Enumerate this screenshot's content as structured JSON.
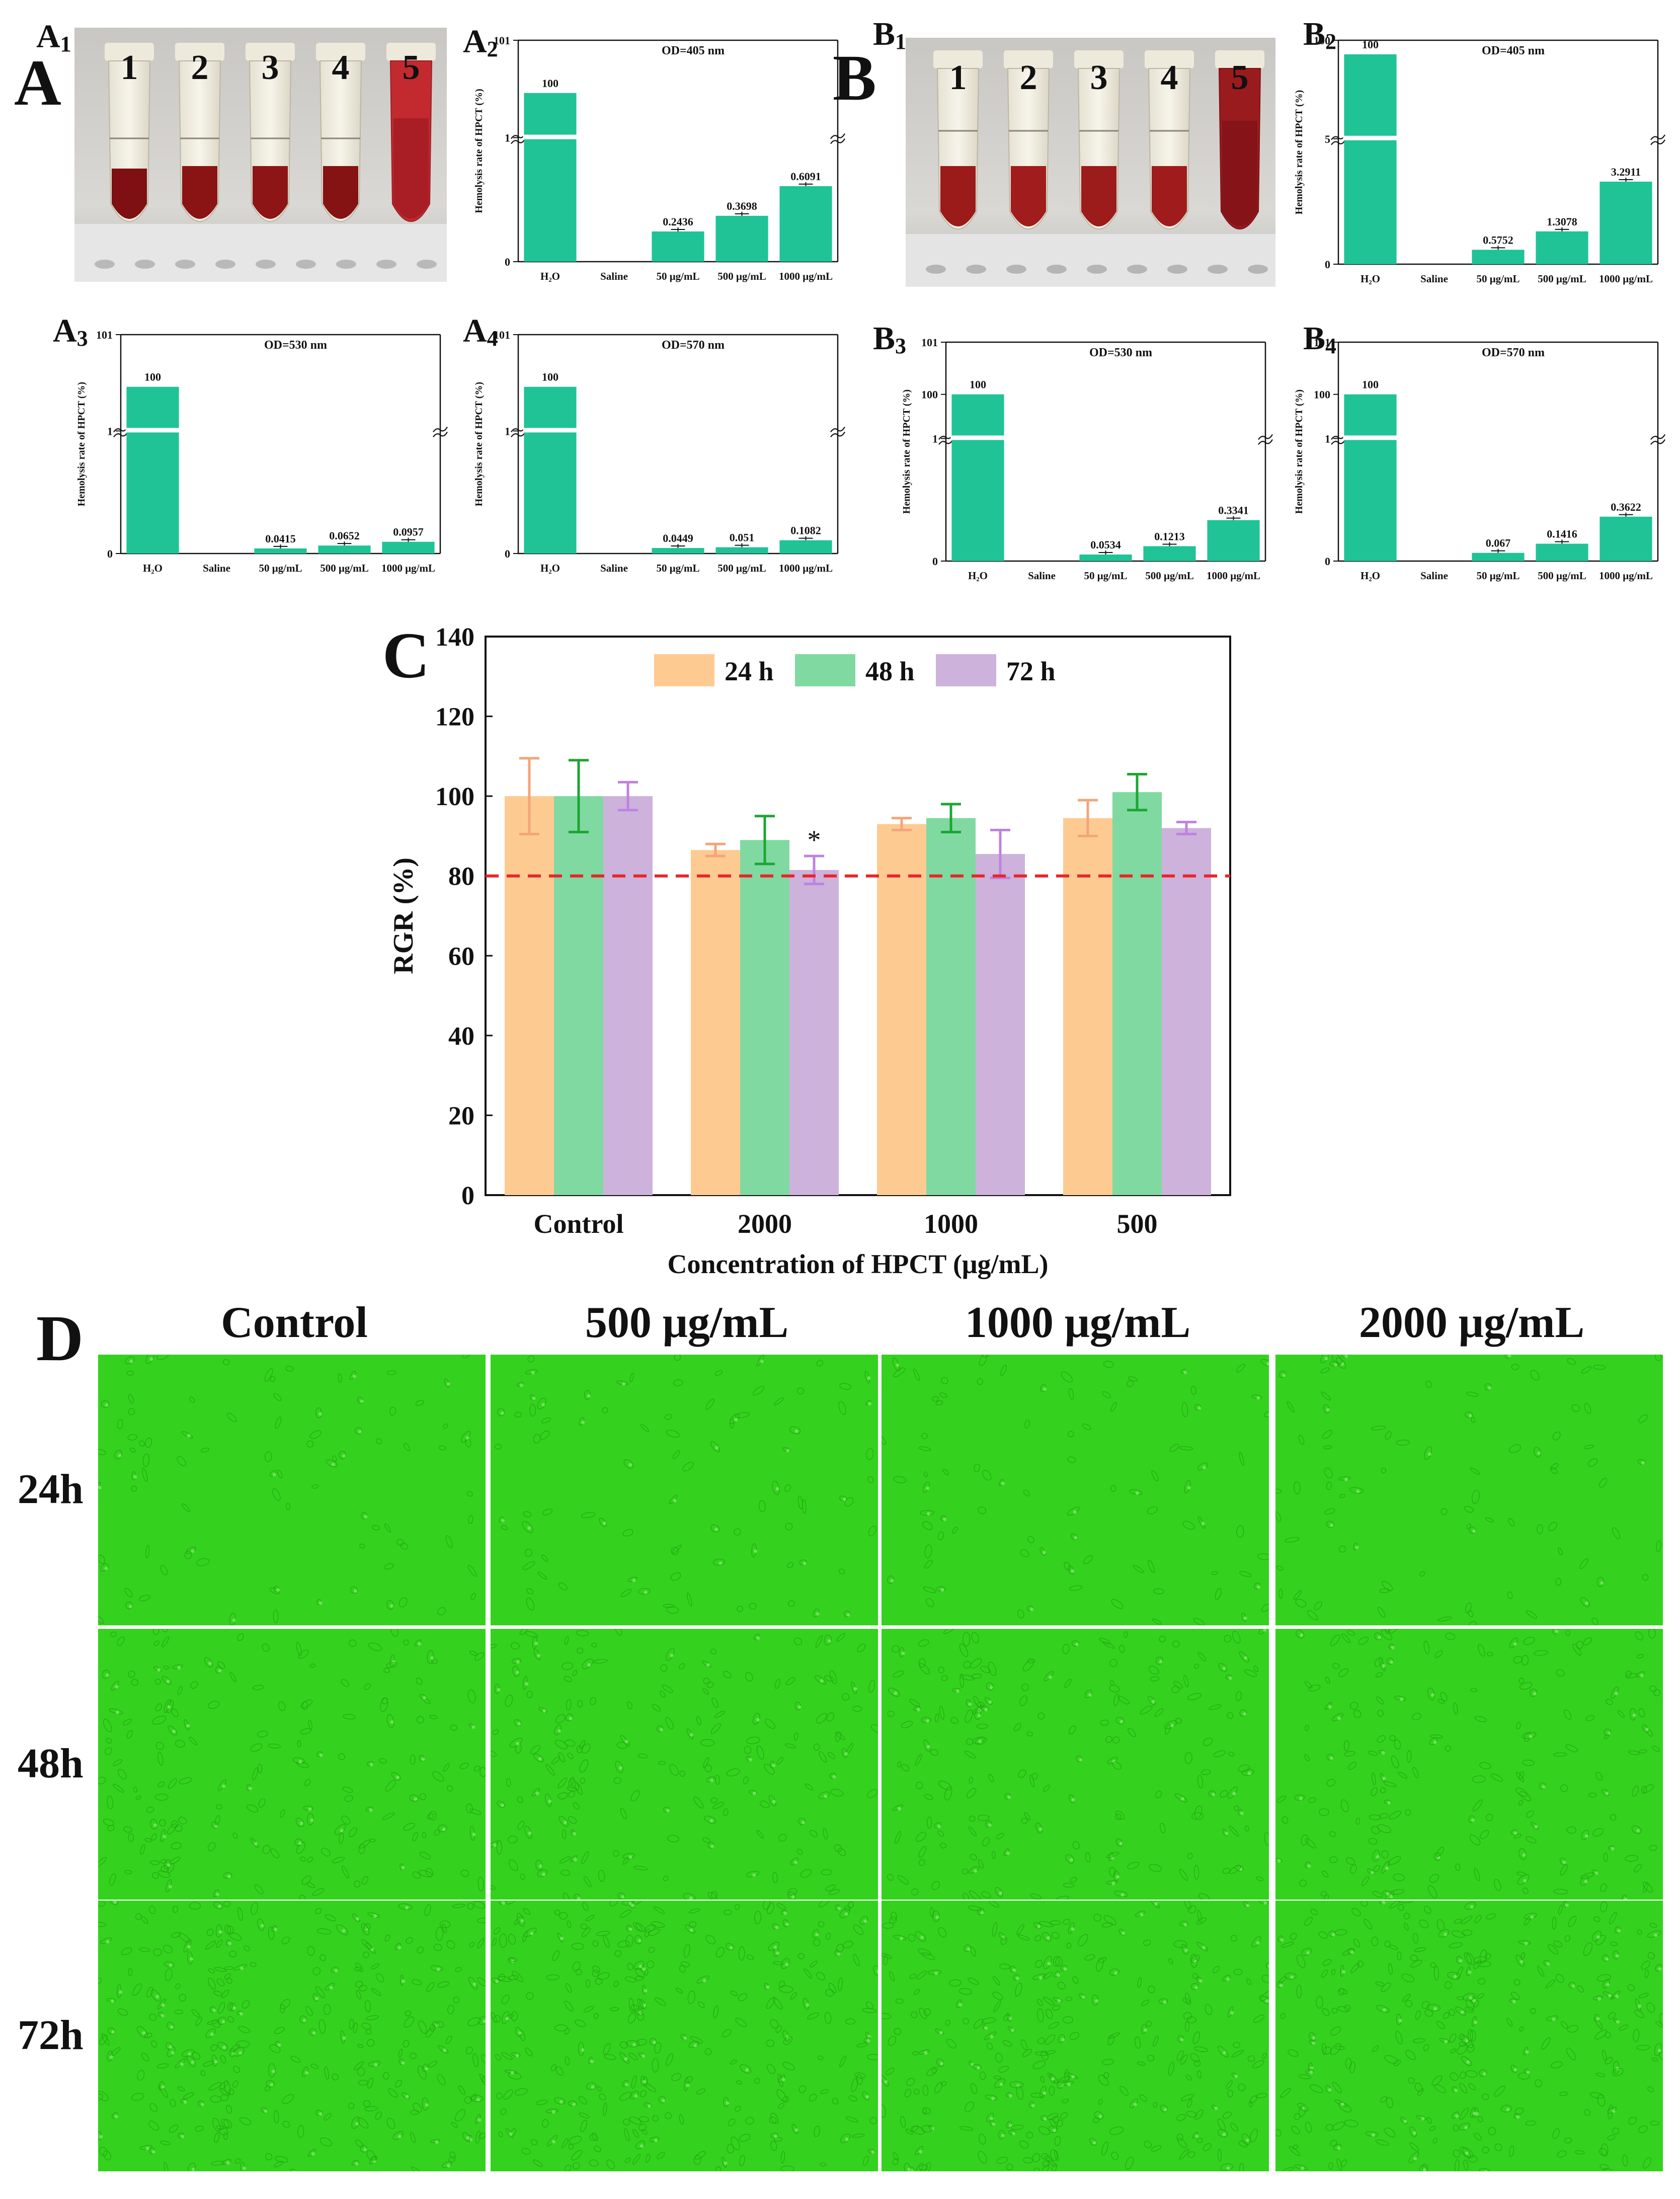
{
  "panels": {
    "A": "A",
    "B": "B",
    "C": "C",
    "D": "D"
  },
  "sub_labels": {
    "A1": "A",
    "A1_sub": "1",
    "A2": "A",
    "A2_sub": "2",
    "A3": "A",
    "A3_sub": "3",
    "A4": "A",
    "A4_sub": "4",
    "B1": "B",
    "B1_sub": "1",
    "B2": "B",
    "B2_sub": "2",
    "B3": "B",
    "B3_sub": "3",
    "B4": "B",
    "B4_sub": "4"
  },
  "tubes": [
    "1",
    "2",
    "3",
    "4",
    "5"
  ],
  "colors": {
    "hemolysis_bar": "#1fc396",
    "series_24h": "#fdcb92",
    "series_48h": "#80d9a1",
    "series_72h": "#cdb2db",
    "err_24h": "#f3a579",
    "err_48h": "#1ba632",
    "err_72h": "#be82e2",
    "threshold": "#e8262a",
    "micro_green": "#34d21e"
  },
  "chart_data": [
    {
      "id": "A2",
      "type": "bar",
      "title": "OD=405 nm",
      "ylabel": "Hemolysis rate of HPCT (%)",
      "categories": [
        "H₂O",
        "Saline",
        "50 μg/mL",
        "500 μg/mL",
        "1000 μg/mL"
      ],
      "values": [
        100,
        0,
        0.2436,
        0.3698,
        0.6091
      ],
      "value_labels": [
        "100",
        "",
        "0.2436",
        "0.3698",
        "0.6091"
      ],
      "broken_axis": {
        "lower": [
          0,
          1
        ],
        "upper": [
          99,
          101
        ]
      },
      "yticks": [
        "0",
        "1",
        "101"
      ]
    },
    {
      "id": "A3",
      "type": "bar",
      "title": "OD=530 nm",
      "ylabel": "Hemolysis rate of HPCT (%)",
      "categories": [
        "H₂O",
        "Saline",
        "50 μg/mL",
        "500 μg/mL",
        "1000 μg/mL"
      ],
      "values": [
        100,
        0,
        0.0415,
        0.0652,
        0.0957
      ],
      "value_labels": [
        "100",
        "",
        "0.0415",
        "0.0652",
        "0.0957"
      ],
      "broken_axis": {
        "lower": [
          0,
          1
        ],
        "upper": [
          99,
          101
        ]
      },
      "yticks": [
        "0",
        "1",
        "101"
      ]
    },
    {
      "id": "A4",
      "type": "bar",
      "title": "OD=570 nm",
      "ylabel": "Hemolysis rate of HPCT (%)",
      "categories": [
        "H₂O",
        "Saline",
        "50 μg/mL",
        "500 μg/mL",
        "1000 μg/mL"
      ],
      "values": [
        100,
        0,
        0.0449,
        0.051,
        0.1082
      ],
      "value_labels": [
        "100",
        "",
        "0.0449",
        "0.051",
        "0.1082"
      ],
      "broken_axis": {
        "lower": [
          0,
          1
        ],
        "upper": [
          99,
          101
        ]
      },
      "yticks": [
        "0",
        "1",
        "101"
      ]
    },
    {
      "id": "B2",
      "type": "bar",
      "title": "OD=405 nm",
      "ylabel": "Hemolysis rate of HPCT (%)",
      "categories": [
        "H₂O",
        "Saline",
        "50 μg/mL",
        "500 μg/mL",
        "1000 μg/mL"
      ],
      "values": [
        100,
        0,
        0.5752,
        1.3078,
        3.2911
      ],
      "value_labels": [
        "100",
        "",
        "0.5752",
        "1.3078",
        "3.2911"
      ],
      "broken_axis": {
        "lower": [
          0,
          5
        ],
        "upper": [
          99,
          100
        ]
      },
      "yticks": [
        "0",
        "5",
        "100"
      ]
    },
    {
      "id": "B3",
      "type": "bar",
      "title": "OD=530 nm",
      "ylabel": "Hemolysis rate of HPCT (%)",
      "categories": [
        "H₂O",
        "Saline",
        "50 μg/mL",
        "500 μg/mL",
        "1000 μg/mL"
      ],
      "values": [
        100,
        0,
        0.0534,
        0.1213,
        0.3341
      ],
      "value_labels": [
        "100",
        "",
        "0.0534",
        "0.1213",
        "0.3341"
      ],
      "broken_axis": {
        "lower": [
          0,
          1
        ],
        "upper": [
          99,
          101
        ]
      },
      "yticks": [
        "0",
        "1",
        "100",
        "101"
      ]
    },
    {
      "id": "B4",
      "type": "bar",
      "title": "OD=570 nm",
      "ylabel": "Hemolysis rate of HPCT (%)",
      "categories": [
        "H₂O",
        "Saline",
        "50 μg/mL",
        "500 μg/mL",
        "1000 μg/mL"
      ],
      "values": [
        100,
        0,
        0.067,
        0.1416,
        0.3622
      ],
      "value_labels": [
        "100",
        "",
        "0.067",
        "0.1416",
        "0.3622"
      ],
      "broken_axis": {
        "lower": [
          0,
          1
        ],
        "upper": [
          99,
          101
        ]
      },
      "yticks": [
        "0",
        "1",
        "100",
        "101"
      ]
    },
    {
      "id": "C",
      "type": "bar",
      "xlabel": "Concentration of HPCT (μg/mL)",
      "ylabel": "RGR (%)",
      "categories": [
        "Control",
        "2000",
        "1000",
        "500"
      ],
      "series": [
        {
          "name": "24 h",
          "values": [
            100,
            86.5,
            93,
            94.5
          ],
          "errors": [
            9.5,
            1.5,
            1.5,
            4.5
          ]
        },
        {
          "name": "48 h",
          "values": [
            100,
            89,
            94.5,
            101
          ],
          "errors": [
            9,
            6,
            3.5,
            4.5
          ]
        },
        {
          "name": "72 h",
          "values": [
            100,
            81.5,
            85.5,
            92
          ],
          "errors": [
            3.5,
            3.5,
            6,
            1.5
          ]
        }
      ],
      "ylim": [
        0,
        140
      ],
      "yticks": [
        "0",
        "20",
        "40",
        "60",
        "80",
        "100",
        "120",
        "140"
      ],
      "threshold": 80,
      "annotation": "*",
      "legend_position": "top"
    }
  ],
  "panel_d": {
    "columns": [
      "Control",
      "500 μg/mL",
      "1000 μg/mL",
      "2000 μg/mL"
    ],
    "rows": [
      "24h",
      "48h",
      "72h"
    ]
  }
}
